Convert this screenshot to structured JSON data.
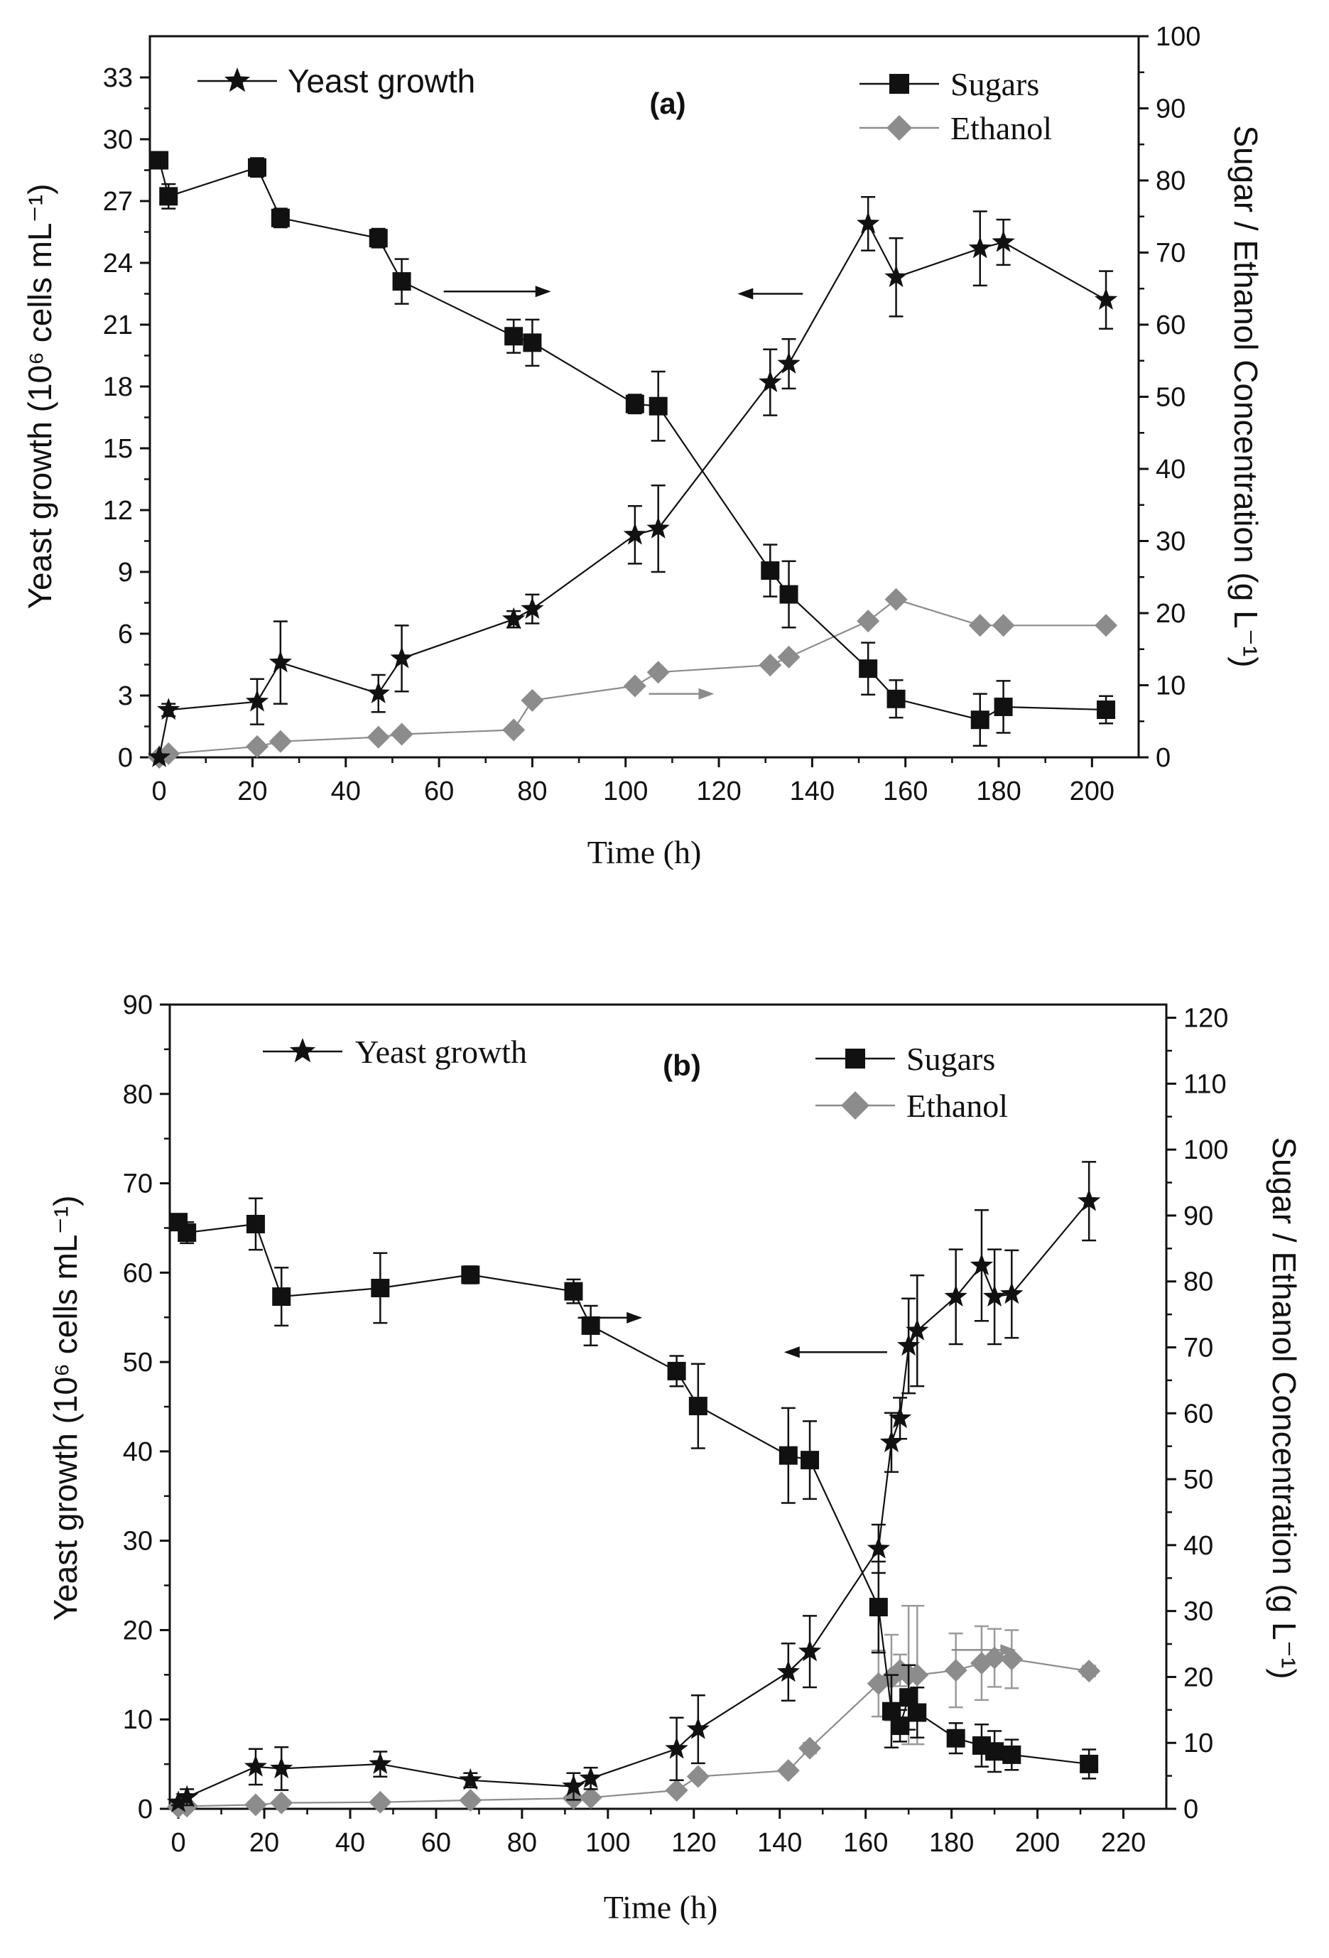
{
  "colors": {
    "axis": "#111111",
    "yeast": "#111111",
    "sugars": "#111111",
    "ethanol": "#8c8c8c",
    "ethanol_error": "#9a9a9a"
  },
  "chart_data": [
    {
      "id": "a",
      "type": "line",
      "panel_label": "(a)",
      "xlabel": "Time (h)",
      "ylabel_left": "Yeast growth (10⁶ cells mL⁻¹)",
      "ylabel_right": "Sugar / Ethanol Concentration (g L⁻¹)",
      "xlim": [
        -2,
        210
      ],
      "x_ticks": [
        0,
        20,
        40,
        60,
        80,
        100,
        120,
        140,
        160,
        180,
        200
      ],
      "ylim_left": [
        0,
        35
      ],
      "left_ticks": [
        0,
        3,
        6,
        9,
        12,
        15,
        18,
        21,
        24,
        27,
        30,
        33
      ],
      "ylim_right": [
        0,
        100
      ],
      "right_ticks": [
        0,
        10,
        20,
        30,
        40,
        50,
        60,
        70,
        80,
        90,
        100
      ],
      "legend": {
        "yeast": "Yeast growth",
        "sugars": "Sugars",
        "ethanol": "Ethanol"
      },
      "annotations": [
        {
          "arrow": "right",
          "points_to": "right axis",
          "series": "sugars",
          "at_x": [
            61,
            84
          ],
          "at_y_right": 64.6
        },
        {
          "arrow": "left",
          "points_to": "left axis",
          "series": "yeast",
          "at_x": [
            138,
            124
          ],
          "at_y_left": 22.5
        },
        {
          "arrow": "right",
          "points_to": "right axis",
          "series": "ethanol",
          "at_x": [
            105,
            119
          ],
          "at_y_right": 8.8
        }
      ],
      "series": [
        {
          "name": "Yeast growth",
          "key": "yeast",
          "marker": "star",
          "axis": "left",
          "x": [
            0,
            2,
            21,
            26,
            47,
            52,
            76,
            80,
            102,
            107,
            131,
            135,
            152,
            158,
            176,
            181,
            203
          ],
          "y": [
            0,
            2.3,
            2.7,
            4.6,
            3.1,
            4.8,
            6.7,
            7.2,
            10.8,
            11.1,
            18.2,
            19.1,
            25.9,
            23.3,
            24.7,
            25.0,
            22.2
          ],
          "err": [
            0,
            0.3,
            1.1,
            2.0,
            0.9,
            1.6,
            0.4,
            0.7,
            1.4,
            2.1,
            1.6,
            1.2,
            1.3,
            1.9,
            1.8,
            1.1,
            1.4
          ]
        },
        {
          "name": "Sugars",
          "key": "sugars",
          "marker": "square",
          "axis": "right",
          "x": [
            0,
            2,
            21,
            26,
            47,
            52,
            76,
            80,
            102,
            107,
            131,
            135,
            152,
            158,
            176,
            181,
            203
          ],
          "y": [
            82.8,
            77.8,
            81.8,
            74.8,
            72.0,
            66.0,
            58.4,
            57.5,
            49.0,
            48.7,
            25.9,
            22.6,
            12.3,
            8.1,
            5.2,
            7.0,
            6.6
          ],
          "err": [
            0.8,
            1.7,
            1.3,
            1.3,
            1.3,
            3.1,
            2.3,
            3.2,
            1.3,
            4.8,
            3.6,
            4.6,
            3.6,
            2.6,
            3.6,
            3.6,
            1.9
          ]
        },
        {
          "name": "Ethanol",
          "key": "ethanol",
          "marker": "diamond",
          "axis": "right",
          "x": [
            0,
            2,
            21,
            26,
            47,
            52,
            76,
            80,
            102,
            107,
            131,
            135,
            152,
            158,
            176,
            181,
            203
          ],
          "y": [
            0,
            0.5,
            1.5,
            2.2,
            2.8,
            3.2,
            3.8,
            7.9,
            9.9,
            11.8,
            12.8,
            13.9,
            18.9,
            21.9,
            18.3,
            18.3,
            18.3
          ],
          "err": [
            0,
            0.3,
            0.5,
            0.5,
            0.4,
            0.4,
            0.5,
            0.5,
            0.5,
            0.5,
            0.5,
            0.5,
            0.5,
            0.5,
            0.5,
            0.5,
            0.5
          ]
        }
      ]
    },
    {
      "id": "b",
      "type": "line",
      "panel_label": "(b)",
      "xlabel": "Time (h)",
      "ylabel_left": "Yeast growth (10⁶ cells mL⁻¹)",
      "ylabel_right": "Sugar / Ethanol Concentration (g L⁻¹)",
      "xlim": [
        -2,
        230
      ],
      "x_ticks": [
        0,
        20,
        40,
        60,
        80,
        100,
        120,
        140,
        160,
        180,
        200,
        220
      ],
      "ylim_left": [
        0,
        90
      ],
      "left_ticks": [
        0,
        10,
        20,
        30,
        40,
        50,
        60,
        70,
        80,
        90
      ],
      "ylim_right": [
        0,
        122
      ],
      "right_ticks": [
        0,
        10,
        20,
        30,
        40,
        50,
        60,
        70,
        80,
        90,
        100,
        110,
        120
      ],
      "legend": {
        "yeast": "Yeast growth",
        "sugars": "Sugars",
        "ethanol": "Ethanol"
      },
      "annotations": [
        {
          "arrow": "right",
          "points_to": "right axis",
          "series": "sugars",
          "at_x": [
            93,
            108
          ],
          "at_y_right": 74.5
        },
        {
          "arrow": "left",
          "points_to": "left axis",
          "series": "yeast",
          "at_x": [
            165,
            141
          ],
          "at_y_left": 51.1
        },
        {
          "arrow": "right",
          "points_to": "right axis",
          "series": "ethanol",
          "at_x": [
            180,
            195
          ],
          "at_y_right": 24.1
        }
      ],
      "series": [
        {
          "name": "Yeast growth",
          "key": "yeast",
          "marker": "star",
          "axis": "left",
          "x": [
            0,
            2,
            18,
            24,
            47,
            68,
            92,
            96,
            116,
            121,
            142,
            147,
            163,
            166,
            168,
            170,
            172,
            181,
            187,
            190,
            194,
            212
          ],
          "y": [
            0.7,
            1.3,
            4.7,
            4.5,
            5.0,
            3.2,
            2.5,
            3.4,
            6.7,
            8.9,
            15.3,
            17.6,
            29.1,
            41.0,
            43.7,
            51.8,
            53.5,
            57.3,
            60.8,
            57.3,
            57.6,
            68.0
          ],
          "err": [
            0.3,
            0.9,
            2.0,
            2.4,
            1.4,
            0.8,
            1.5,
            1.2,
            3.5,
            3.8,
            3.2,
            4.0,
            2.7,
            3.3,
            2.3,
            5.3,
            6.2,
            5.3,
            6.2,
            5.3,
            4.9,
            4.4
          ]
        },
        {
          "name": "Sugars",
          "key": "sugars",
          "marker": "square",
          "axis": "right",
          "x": [
            0,
            2,
            18,
            24,
            47,
            68,
            92,
            96,
            116,
            121,
            142,
            147,
            163,
            166,
            168,
            170,
            172,
            181,
            187,
            190,
            194,
            212
          ],
          "y": [
            89.0,
            87.4,
            88.7,
            77.7,
            79.0,
            81.0,
            78.5,
            73.3,
            66.4,
            61.1,
            53.6,
            52.9,
            30.6,
            14.8,
            12.6,
            16.9,
            14.6,
            10.7,
            9.6,
            8.7,
            8.2,
            6.8
          ],
          "err": [
            0.7,
            1.6,
            3.9,
            4.4,
            5.3,
            1.3,
            1.8,
            3.0,
            2.3,
            6.4,
            7.2,
            5.9,
            6.9,
            5.5,
            2.4,
            4.9,
            3.8,
            2.3,
            3.2,
            3.1,
            2.3,
            2.2
          ]
        },
        {
          "name": "Ethanol",
          "key": "ethanol",
          "marker": "diamond",
          "axis": "right",
          "x": [
            0,
            2,
            18,
            24,
            47,
            68,
            92,
            96,
            116,
            121,
            142,
            147,
            163,
            166,
            168,
            170,
            172,
            181,
            187,
            190,
            194,
            212
          ],
          "y": [
            0.3,
            0.4,
            0.6,
            0.9,
            1.0,
            1.3,
            1.6,
            1.7,
            2.8,
            4.9,
            5.8,
            9.2,
            19.0,
            19.9,
            21.0,
            20.3,
            20.3,
            21.0,
            22.1,
            22.9,
            22.7,
            20.9
          ],
          "err": [
            0.2,
            0.2,
            0.3,
            0.3,
            0.3,
            0.3,
            0.3,
            0.4,
            0.5,
            0.6,
            0.6,
            0.8,
            5.0,
            6.5,
            2.4,
            10.5,
            10.5,
            5.6,
            5.6,
            4.4,
            4.4,
            0.8
          ]
        }
      ]
    }
  ]
}
